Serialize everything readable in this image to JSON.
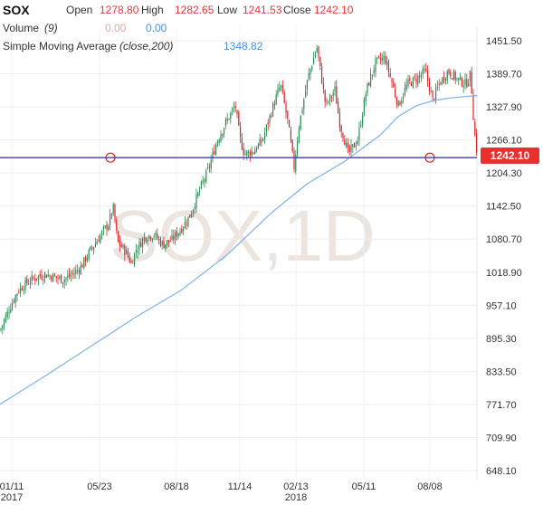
{
  "header": {
    "symbol": "SOX",
    "open_label": "Open",
    "open": "1278.80",
    "high_label": "High",
    "high": "1282.65",
    "low_label": "Low",
    "low": "1241.53",
    "close_label": "Close",
    "close": "1242.10",
    "volume_label": "Volume",
    "volume_param": "(9)",
    "volume_val1": "0.00",
    "volume_val2": "0.00",
    "sma_label": "Simple Moving Average",
    "sma_param": "(close,200)",
    "sma_val": "1348.82"
  },
  "watermark": "SOX,1D",
  "price_tag": "1242.10",
  "colors": {
    "up": "#2e8b57",
    "down": "#d9242a",
    "sma": "#7fb2e8",
    "hline": "#3f3fa8",
    "tag": "#e8312f"
  },
  "chart_data": {
    "type": "candlestick",
    "y_ticks": [
      "1451.50",
      "1389.70",
      "1327.90",
      "1266.10",
      "1204.30",
      "1142.50",
      "1080.70",
      "1018.90",
      "957.10",
      "895.30",
      "833.50",
      "771.70",
      "709.90",
      "648.10"
    ],
    "ylim": [
      620,
      1500
    ],
    "x_ticks": [
      {
        "label": "01/11",
        "sub": "2017"
      },
      {
        "label": "05/23",
        "sub": ""
      },
      {
        "label": "08/18",
        "sub": ""
      },
      {
        "label": "11/14",
        "sub": ""
      },
      {
        "label": "02/13",
        "sub": "2018"
      },
      {
        "label": "05/11",
        "sub": ""
      },
      {
        "label": "08/08",
        "sub": ""
      }
    ],
    "horizontal_line": 1233,
    "close_series": [
      [
        0,
        910
      ],
      [
        10,
        950
      ],
      [
        20,
        985
      ],
      [
        30,
        1000
      ],
      [
        40,
        1010
      ],
      [
        50,
        1015
      ],
      [
        60,
        1010
      ],
      [
        70,
        1005
      ],
      [
        80,
        1015
      ],
      [
        90,
        1030
      ],
      [
        100,
        1060
      ],
      [
        110,
        1085
      ],
      [
        120,
        1110
      ],
      [
        125,
        1140
      ],
      [
        130,
        1075
      ],
      [
        140,
        1055
      ],
      [
        145,
        1035
      ],
      [
        150,
        1060
      ],
      [
        160,
        1085
      ],
      [
        170,
        1090
      ],
      [
        180,
        1070
      ],
      [
        190,
        1080
      ],
      [
        200,
        1100
      ],
      [
        210,
        1125
      ],
      [
        220,
        1170
      ],
      [
        230,
        1210
      ],
      [
        240,
        1265
      ],
      [
        250,
        1300
      ],
      [
        260,
        1330
      ],
      [
        265,
        1270
      ],
      [
        270,
        1240
      ],
      [
        280,
        1245
      ],
      [
        290,
        1265
      ],
      [
        300,
        1320
      ],
      [
        310,
        1370
      ],
      [
        318,
        1300
      ],
      [
        325,
        1215
      ],
      [
        330,
        1290
      ],
      [
        340,
        1380
      ],
      [
        350,
        1440
      ],
      [
        360,
        1330
      ],
      [
        370,
        1360
      ],
      [
        375,
        1300
      ],
      [
        385,
        1240
      ],
      [
        395,
        1265
      ],
      [
        405,
        1360
      ],
      [
        415,
        1410
      ],
      [
        425,
        1420
      ],
      [
        432,
        1380
      ],
      [
        440,
        1330
      ],
      [
        450,
        1370
      ],
      [
        460,
        1380
      ],
      [
        470,
        1395
      ],
      [
        478,
        1340
      ],
      [
        485,
        1370
      ],
      [
        495,
        1395
      ],
      [
        505,
        1380
      ],
      [
        515,
        1370
      ],
      [
        520,
        1390
      ],
      [
        524,
        1285
      ],
      [
        527,
        1242
      ]
    ],
    "sma_series": [
      [
        0,
        772
      ],
      [
        50,
        825
      ],
      [
        100,
        880
      ],
      [
        150,
        935
      ],
      [
        200,
        985
      ],
      [
        250,
        1050
      ],
      [
        300,
        1130
      ],
      [
        340,
        1185
      ],
      [
        380,
        1225
      ],
      [
        420,
        1275
      ],
      [
        440,
        1310
      ],
      [
        460,
        1330
      ],
      [
        480,
        1340
      ],
      [
        500,
        1345
      ],
      [
        527,
        1349
      ]
    ]
  }
}
